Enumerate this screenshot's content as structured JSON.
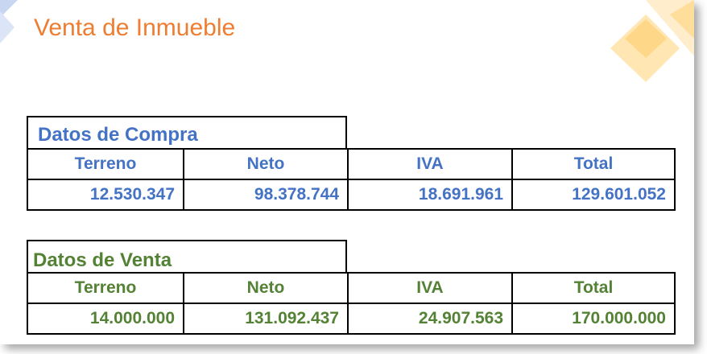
{
  "slide": {
    "title": "Venta de Inmueble",
    "colors": {
      "title": "#ED7D31",
      "compra": "#4472C4",
      "venta": "#548235",
      "deco_light": "#FFE6B3",
      "deco_dark": "#FFD27A",
      "deco_blue": "#C9D6F2"
    }
  },
  "compra": {
    "heading": "Datos de Compra",
    "headers": [
      "Terreno",
      "Neto",
      "IVA",
      "Total"
    ],
    "values": [
      "12.530.347",
      "98.378.744",
      "18.691.961",
      "129.601.052"
    ]
  },
  "venta": {
    "heading": "Datos de Venta",
    "headers": [
      "Terreno",
      "Neto",
      "IVA",
      "Total"
    ],
    "values": [
      "14.000.000",
      "131.092.437",
      "24.907.563",
      "170.000.000"
    ]
  }
}
